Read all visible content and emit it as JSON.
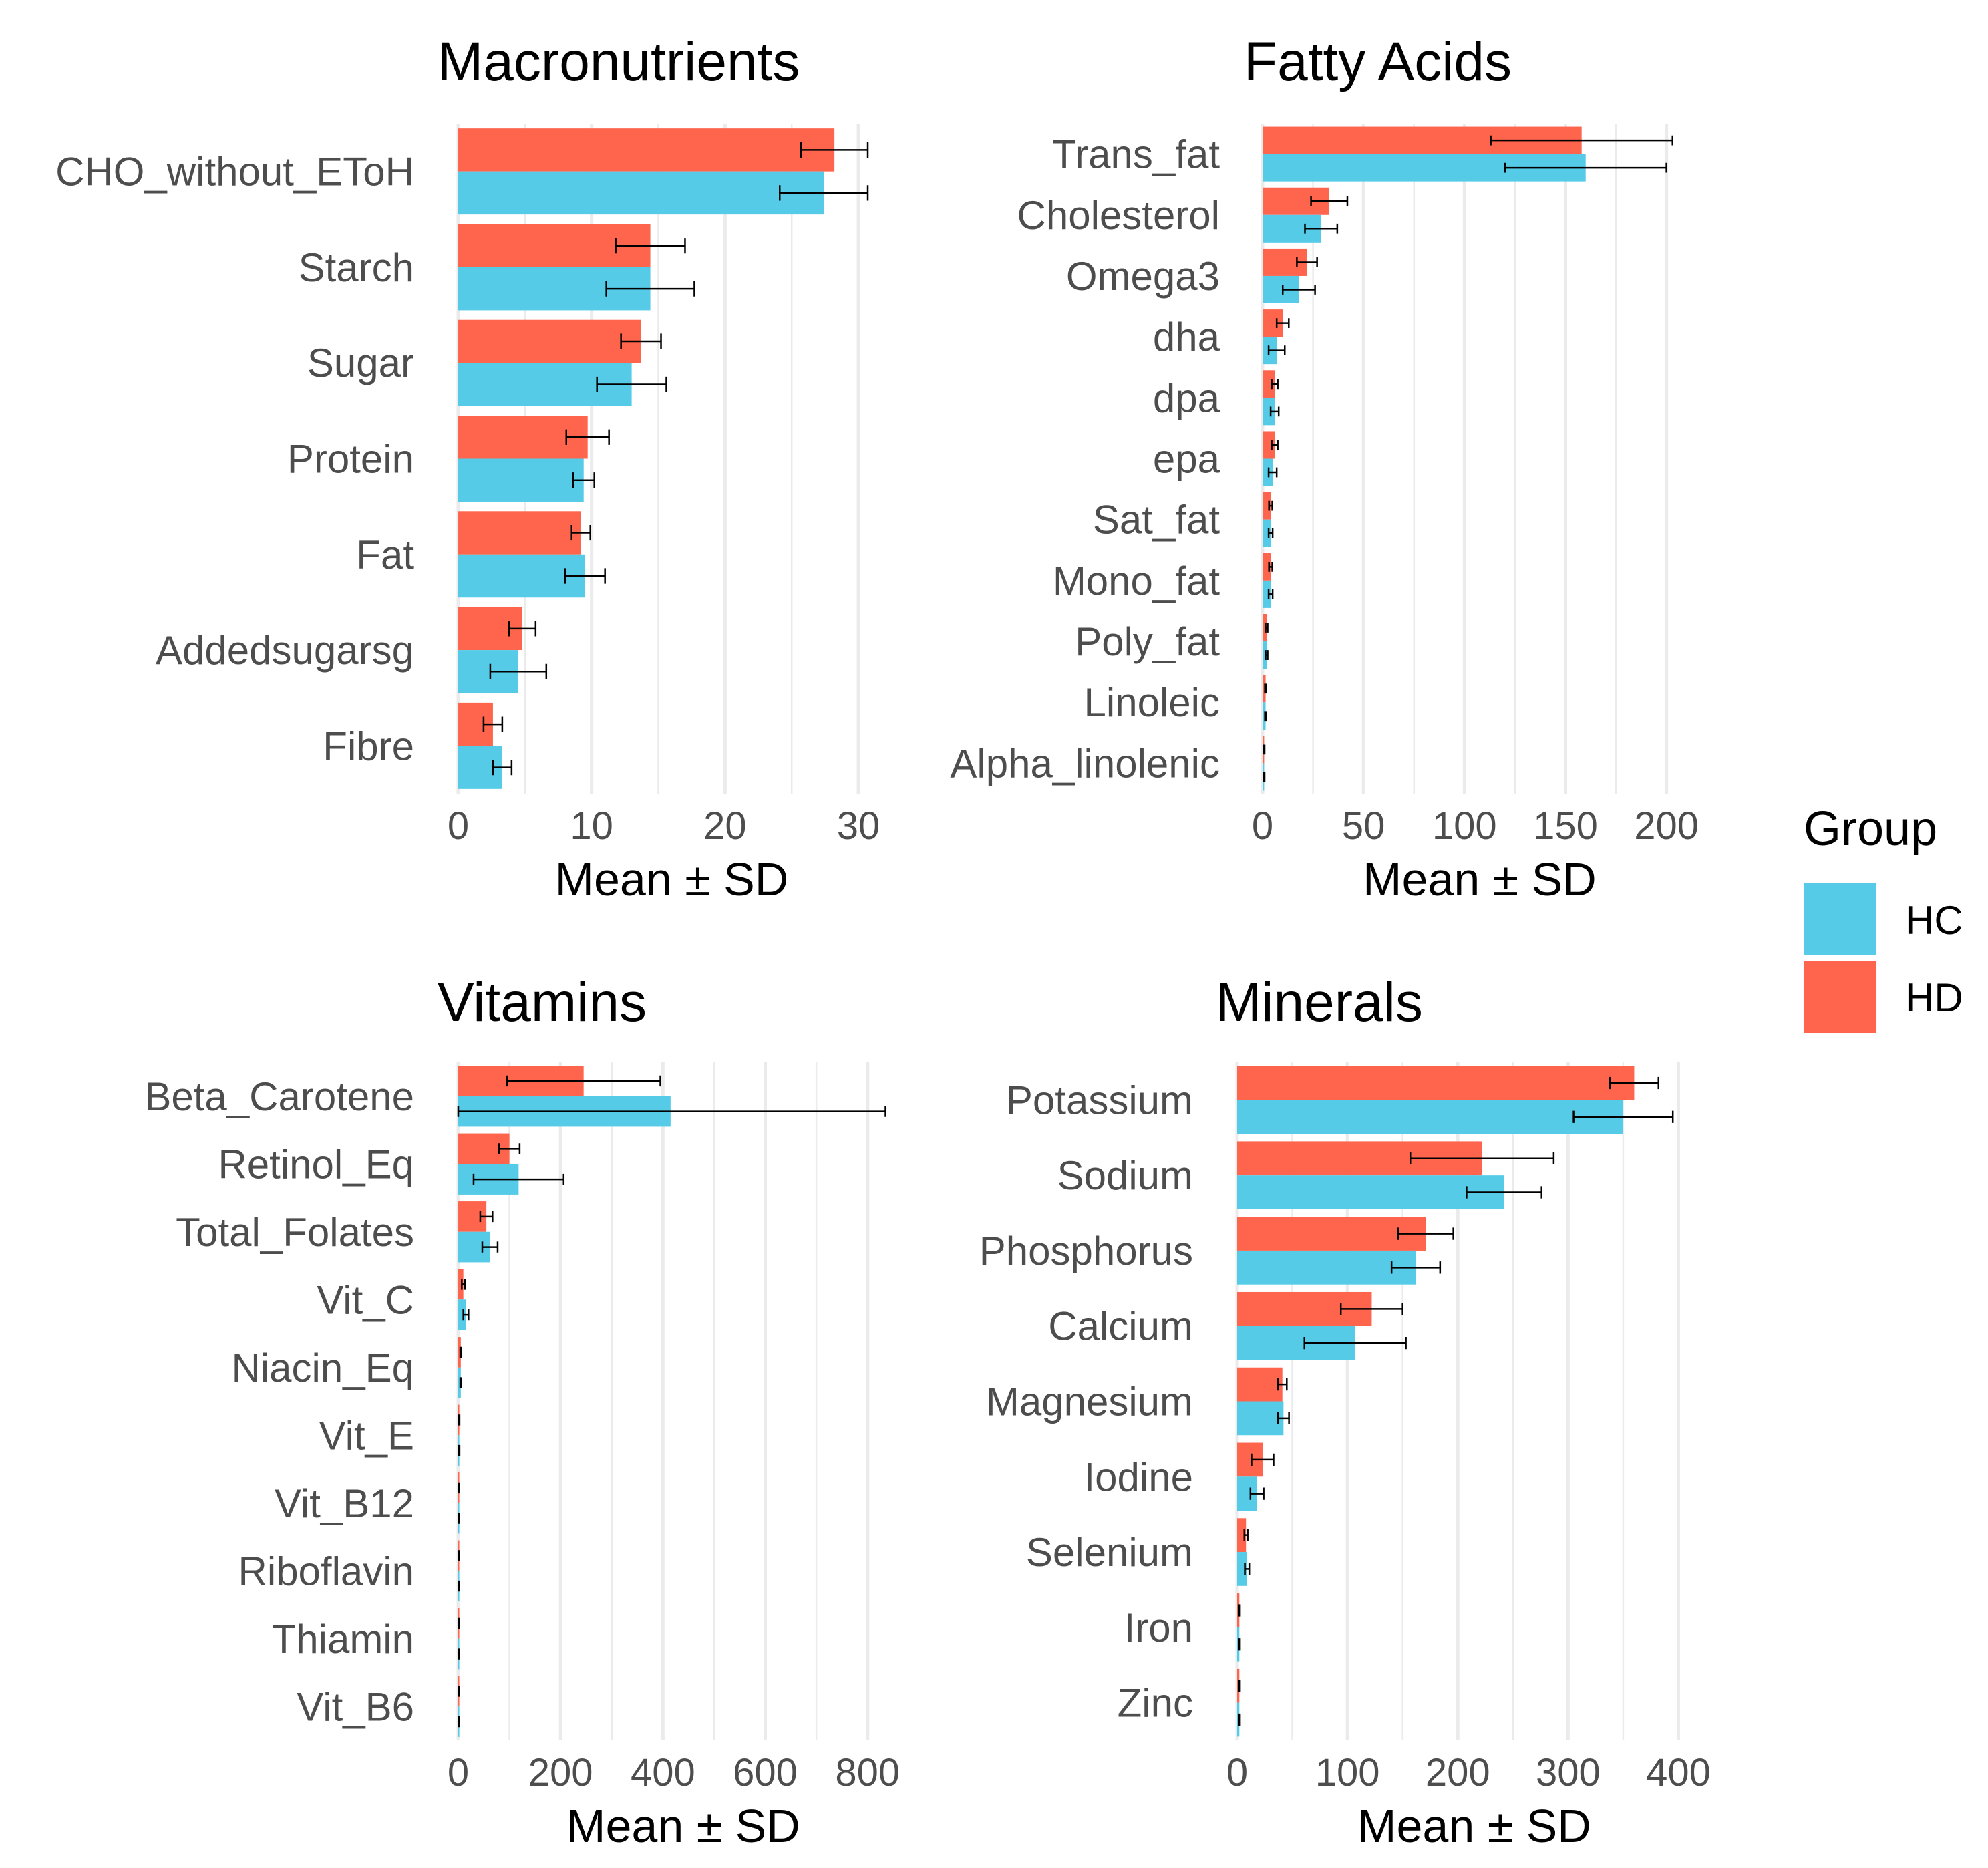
{
  "chart_data": [
    {
      "type": "bar",
      "orientation": "horizontal",
      "title": "Macronutrients",
      "xlabel": "Mean ± SD",
      "ylabel": "",
      "xlim": [
        0,
        32
      ],
      "xticks": [
        0,
        10,
        20,
        30
      ],
      "categories": [
        "CHO_without_EToH",
        "Starch",
        "Sugar",
        "Protein",
        "Fat",
        "Addedsugarsg",
        "Fibre"
      ],
      "series": [
        {
          "name": "HD",
          "values": [
            28.2,
            14.4,
            13.7,
            9.7,
            9.2,
            4.8,
            2.6
          ],
          "sd": [
            2.5,
            2.6,
            1.5,
            1.6,
            0.7,
            1.0,
            0.7
          ]
        },
        {
          "name": "HC",
          "values": [
            27.4,
            14.4,
            13.0,
            9.4,
            9.5,
            4.5,
            3.3
          ],
          "sd": [
            3.3,
            3.3,
            2.6,
            0.8,
            1.5,
            2.1,
            0.7
          ]
        }
      ]
    },
    {
      "type": "bar",
      "orientation": "horizontal",
      "title": "Fatty Acids",
      "xlabel": "Mean ± SD",
      "ylabel": "",
      "xlim": [
        0,
        215
      ],
      "xticks": [
        0,
        50,
        100,
        150,
        200
      ],
      "categories": [
        "Trans_fat",
        "Cholesterol",
        "Omega3",
        "dha",
        "dpa",
        "epa",
        "Sat_fat",
        "Mono_fat",
        "Poly_fat",
        "Linoleic",
        "Alpha_linolenic"
      ],
      "series": [
        {
          "name": "HD",
          "values": [
            158,
            33,
            22,
            10,
            6,
            6,
            4,
            4,
            2,
            1.5,
            0.8
          ],
          "sd": [
            45,
            9,
            5,
            3,
            1.5,
            1.5,
            0.8,
            0.8,
            0.5,
            0.3,
            0.2
          ]
        },
        {
          "name": "HC",
          "values": [
            160,
            29,
            18,
            7,
            6,
            5,
            4,
            4,
            2,
            1.5,
            0.8
          ],
          "sd": [
            40,
            8,
            8,
            4,
            2,
            2,
            1,
            1,
            0.5,
            0.3,
            0.2
          ]
        }
      ]
    },
    {
      "type": "bar",
      "orientation": "horizontal",
      "title": "Vitamins",
      "xlabel": "Mean ± SD",
      "ylabel": "",
      "xlim": [
        0,
        880
      ],
      "xticks": [
        0,
        200,
        400,
        600,
        800
      ],
      "categories": [
        "Beta_Carotene",
        "Retinol_Eq",
        "Total_Folates",
        "Vit_C",
        "Niacin_Eq",
        "Vit_E",
        "Vit_B12",
        "Riboflavin",
        "Thiamin",
        "Vit_B6"
      ],
      "series": [
        {
          "name": "HD",
          "values": [
            245,
            100,
            55,
            10,
            5,
            2,
            1,
            1,
            0.8,
            0.8
          ],
          "sd": [
            150,
            20,
            12,
            3,
            1,
            0.5,
            0.3,
            0.2,
            0.2,
            0.2
          ]
        },
        {
          "name": "HC",
          "values": [
            415,
            118,
            62,
            15,
            5,
            2,
            1,
            1,
            0.8,
            0.8
          ],
          "sd": [
            420,
            88,
            15,
            5,
            1,
            0.5,
            0.3,
            0.2,
            0.2,
            0.2
          ]
        }
      ]
    },
    {
      "type": "bar",
      "orientation": "horizontal",
      "title": "Minerals",
      "xlabel": "Mean ± SD",
      "ylabel": "",
      "xlim": [
        0,
        430
      ],
      "xticks": [
        0,
        100,
        200,
        300,
        400
      ],
      "categories": [
        "Potassium",
        "Sodium",
        "Phosphorus",
        "Calcium",
        "Magnesium",
        "Iodine",
        "Selenium",
        "Iron",
        "Zinc"
      ],
      "series": [
        {
          "name": "HD",
          "values": [
            360,
            222,
            171,
            122,
            41,
            23,
            8,
            2,
            2
          ],
          "sd": [
            22,
            65,
            25,
            28,
            4,
            10,
            1.5,
            0.5,
            0.5
          ]
        },
        {
          "name": "HC",
          "values": [
            350,
            242,
            162,
            107,
            42,
            18,
            9,
            2,
            2
          ],
          "sd": [
            45,
            34,
            22,
            46,
            5,
            6,
            2,
            0.5,
            0.5
          ]
        }
      ]
    }
  ],
  "legend": {
    "title": "Group",
    "items": [
      {
        "label": "HC",
        "color": "#56CBE8"
      },
      {
        "label": "HD",
        "color": "#FF644C"
      }
    ]
  }
}
